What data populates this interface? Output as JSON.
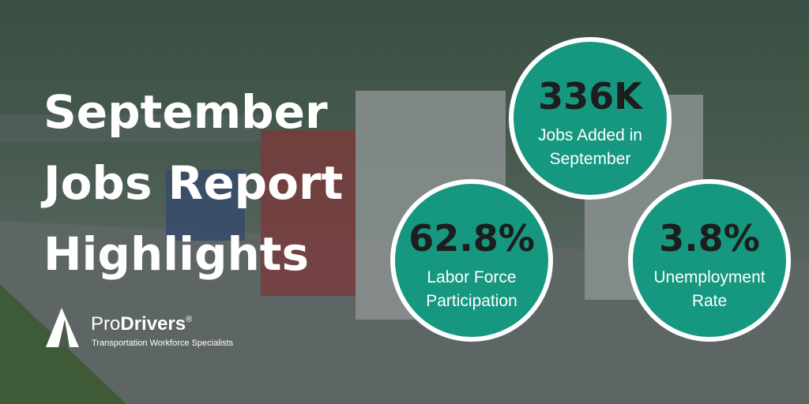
{
  "header": {
    "title_lines": [
      "September",
      "Jobs Report",
      "Highlights"
    ]
  },
  "stats": [
    {
      "value": "336K",
      "label_lines": [
        "Jobs Added in",
        "September"
      ]
    },
    {
      "value": "62.8%",
      "label_lines": [
        "Labor Force",
        "Participation"
      ]
    },
    {
      "value": "3.8%",
      "label_lines": [
        "Unemployment",
        "Rate"
      ]
    }
  ],
  "logo": {
    "name_prefix": "Pro",
    "name_bold": "Drivers",
    "registered": "®",
    "tagline": "Transportation Workforce Specialists"
  }
}
